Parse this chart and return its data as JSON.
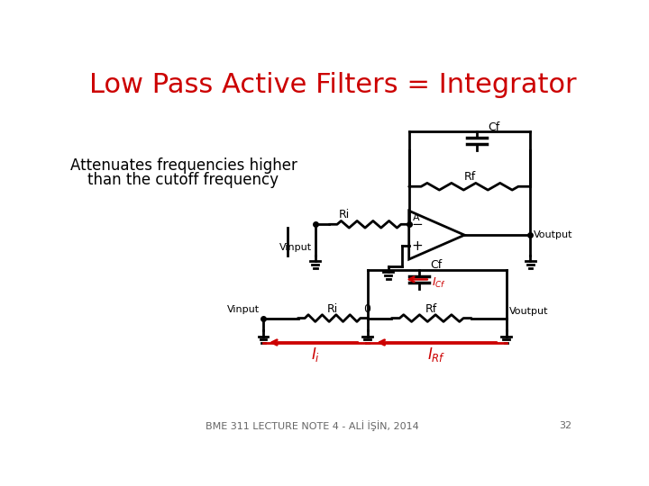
{
  "title": "Low Pass Active Filters = Integrator",
  "title_color": "#cc0000",
  "title_fontsize": 22,
  "bg_color": "#ffffff",
  "text_color": "#000000",
  "red_color": "#cc0000",
  "subtitle_line1": "Attenuates frequencies higher",
  "subtitle_line2": "than the cutoff frequency",
  "subtitle_fontsize": 12,
  "footer_text": "BME 311 LECTURE NOTE 4 - ALİ İŞİN, 2014",
  "footer_page": "32",
  "footer_fontsize": 8
}
